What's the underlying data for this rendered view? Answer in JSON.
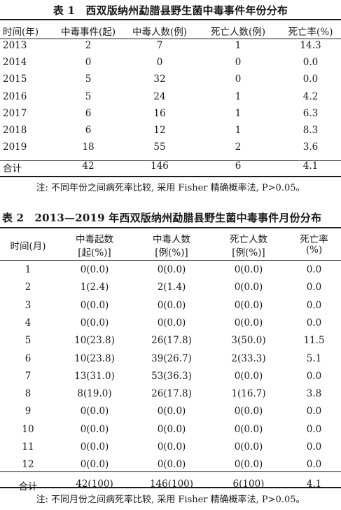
{
  "table1": {
    "caption": "表 1　西双版纳州勐腊县野生菌中毒事件年份分布",
    "headers": [
      "时间(年)",
      "中毒事件(起)",
      "中毒人数(例)",
      "死亡人数(例)",
      "死亡率(%)"
    ],
    "rows": [
      [
        "2013",
        "2",
        "7",
        "1",
        "14.3"
      ],
      [
        "2014",
        "0",
        "0",
        "0",
        "0.0"
      ],
      [
        "2015",
        "5",
        "32",
        "0",
        "0.0"
      ],
      [
        "2016",
        "5",
        "24",
        "1",
        "4.2"
      ],
      [
        "2017",
        "6",
        "16",
        "1",
        "6.3"
      ],
      [
        "2018",
        "6",
        "12",
        "1",
        "8.3"
      ],
      [
        "2019",
        "18",
        "55",
        "2",
        "3.6"
      ],
      [
        "合计",
        "42",
        "146",
        "6",
        "4.1"
      ]
    ],
    "note": "注: 不同年份之间病死率比较, 采用 Fisher 精确概率法, P>0.05。"
  },
  "table2": {
    "caption": "表 2　2013—2019 年西双版纳州勐腊县野生菌中毒事件月份分布",
    "headers_line1": [
      "时间(月)",
      "中毒起数",
      "中毒人数",
      "死亡人数",
      "死亡率"
    ],
    "headers_line2": [
      "",
      "[起(%)]",
      "[例(%)]",
      "[例(%)]",
      "(%)"
    ],
    "rows": [
      [
        "1",
        "0(0.0)",
        "0(0.0)",
        "0(0.0)",
        "0.0"
      ],
      [
        "2",
        "1(2.4)",
        "2(1.4)",
        "0(0.0)",
        "0.0"
      ],
      [
        "3",
        "0(0.0)",
        "0(0.0)",
        "0(0.0)",
        "0.0"
      ],
      [
        "4",
        "0(0.0)",
        "0(0.0)",
        "0(0.0)",
        "0.0"
      ],
      [
        "5",
        "10(23.8)",
        "26(17.8)",
        "3(50.0)",
        "11.5"
      ],
      [
        "6",
        "10(23.8)",
        "39(26.7)",
        "2(33.3)",
        "5.1"
      ],
      [
        "7",
        "13(31.0)",
        "53(36.3)",
        "0(0.0)",
        "0.0"
      ],
      [
        "8",
        "8(19.0)",
        "26(17.8)",
        "1(16.7)",
        "3.8"
      ],
      [
        "9",
        "0(0.0)",
        "0(0.0)",
        "0(0.0)",
        "0.0"
      ],
      [
        "10",
        "0(0.0)",
        "0(0.0)",
        "0(0.0)",
        "0.0"
      ],
      [
        "11",
        "0(0.0)",
        "0(0.0)",
        "0(0.0)",
        "0.0"
      ],
      [
        "12",
        "0(0.0)",
        "0(0.0)",
        "0(0.0)",
        "0.0"
      ],
      [
        "合计",
        "42(100)",
        "146(100)",
        "6(100)",
        "4.1"
      ]
    ],
    "note": "注: 不同月份之间病死率比较, 采用 Fisher 精确概率法, P>0.05。"
  }
}
